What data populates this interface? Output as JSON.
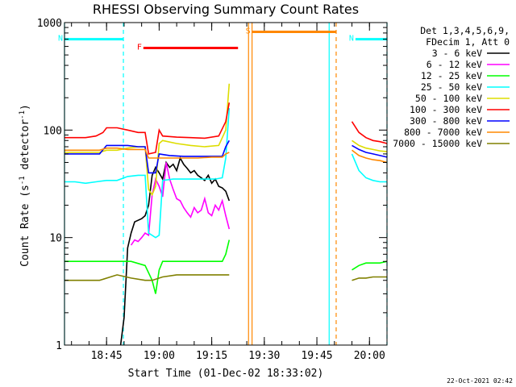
{
  "chart_data": {
    "type": "line",
    "title": "RHESSI Observing Summary Count Rates",
    "xlabel": "Start Time (01-Dec-02 18:33:02)",
    "ylabel_main": "Count Rate (s",
    "ylabel_sup1": "-1",
    "ylabel_mid": " detector",
    "ylabel_sup2": "-1",
    "ylabel_end": ")",
    "yscale": "log",
    "ylim": [
      1,
      1000
    ],
    "xlim_minutes": [
      0,
      92
    ],
    "x_ticks": [
      {
        "label": "18:45",
        "minutes": 12
      },
      {
        "label": "19:00",
        "minutes": 27
      },
      {
        "label": "19:15",
        "minutes": 42
      },
      {
        "label": "19:30",
        "minutes": 57
      },
      {
        "label": "19:45",
        "minutes": 72
      },
      {
        "label": "20:00",
        "minutes": 87
      }
    ],
    "y_ticks": [
      {
        "label": "1",
        "value": 1
      },
      {
        "label": "10",
        "value": 10
      },
      {
        "label": "100",
        "value": 100
      },
      {
        "label": "1000",
        "value": 1000
      }
    ],
    "legend_header": [
      "Det 1,3,4,5,6,9,",
      "FDecim 1, Att 0"
    ],
    "series": [
      {
        "name": "3 - 6 keV",
        "color": "#000000",
        "points": [
          [
            16,
            1
          ],
          [
            17,
            1.8
          ],
          [
            18,
            8
          ],
          [
            19,
            11
          ],
          [
            20,
            14
          ],
          [
            22,
            15
          ],
          [
            23,
            16
          ],
          [
            24,
            20
          ],
          [
            25,
            38
          ],
          [
            26,
            45
          ],
          [
            27,
            40
          ],
          [
            28,
            35
          ],
          [
            29,
            50
          ],
          [
            30,
            45
          ],
          [
            31,
            48
          ],
          [
            32,
            42
          ],
          [
            33,
            55
          ],
          [
            34,
            48
          ],
          [
            35,
            44
          ],
          [
            36,
            40
          ],
          [
            37,
            42
          ],
          [
            38,
            38
          ],
          [
            39,
            36
          ],
          [
            40,
            34
          ],
          [
            41,
            38
          ],
          [
            42,
            32
          ],
          [
            43,
            35
          ],
          [
            44,
            30
          ],
          [
            45,
            29
          ],
          [
            46,
            27
          ],
          [
            47,
            22
          ]
        ]
      },
      {
        "name": "6 - 12 keV",
        "color": "#ff00ff",
        "points": [
          [
            19,
            8.5
          ],
          [
            20,
            9.5
          ],
          [
            21,
            9.2
          ],
          [
            22,
            10
          ],
          [
            23,
            11
          ],
          [
            24,
            10.5
          ],
          [
            25,
            25
          ],
          [
            26,
            35
          ],
          [
            27,
            30
          ],
          [
            28,
            24
          ],
          [
            29,
            50
          ],
          [
            30,
            35
          ],
          [
            31,
            28
          ],
          [
            32,
            23
          ],
          [
            33,
            22
          ],
          [
            34,
            19
          ],
          [
            35,
            17
          ],
          [
            36,
            15.5
          ],
          [
            37,
            19
          ],
          [
            38,
            17
          ],
          [
            39,
            18
          ],
          [
            40,
            23
          ],
          [
            41,
            17
          ],
          [
            42,
            16
          ],
          [
            43,
            20
          ],
          [
            44,
            18
          ],
          [
            45,
            22
          ],
          [
            46,
            16
          ],
          [
            47,
            12
          ]
        ]
      },
      {
        "name": "12 - 25 keV",
        "color": "#00ff00",
        "points": [
          [
            0,
            6
          ],
          [
            5,
            6
          ],
          [
            10,
            6
          ],
          [
            15,
            6
          ],
          [
            19,
            6
          ],
          [
            23,
            5.5
          ],
          [
            25,
            4
          ],
          [
            26,
            3
          ],
          [
            27,
            5
          ],
          [
            28,
            6
          ],
          [
            32,
            6
          ],
          [
            37,
            6
          ],
          [
            42,
            6
          ],
          [
            45,
            6
          ],
          [
            46,
            7
          ],
          [
            47,
            9.5
          ]
        ]
      },
      {
        "name": "25 - 50 keV",
        "color": "#00ffff",
        "points": [
          [
            0,
            33
          ],
          [
            3,
            33
          ],
          [
            6,
            32
          ],
          [
            9,
            33
          ],
          [
            12,
            34
          ],
          [
            15,
            34
          ],
          [
            18,
            37
          ],
          [
            21,
            38
          ],
          [
            23,
            38
          ],
          [
            24,
            11
          ],
          [
            26,
            10
          ],
          [
            27,
            10.5
          ],
          [
            28,
            34
          ],
          [
            31,
            35
          ],
          [
            34,
            35
          ],
          [
            37,
            35
          ],
          [
            40,
            35
          ],
          [
            43,
            35
          ],
          [
            45,
            36
          ],
          [
            46,
            55
          ],
          [
            47,
            160
          ]
        ]
      },
      {
        "name": "50 - 100 keV",
        "color": "#dddd00",
        "points": [
          [
            0,
            62
          ],
          [
            5,
            62
          ],
          [
            10,
            62
          ],
          [
            12,
            65
          ],
          [
            15,
            65
          ],
          [
            18,
            68
          ],
          [
            21,
            70
          ],
          [
            23,
            70
          ],
          [
            24,
            28
          ],
          [
            25,
            25
          ],
          [
            26,
            30
          ],
          [
            27,
            75
          ],
          [
            28,
            80
          ],
          [
            32,
            75
          ],
          [
            36,
            72
          ],
          [
            40,
            70
          ],
          [
            44,
            72
          ],
          [
            46,
            100
          ],
          [
            47,
            270
          ]
        ]
      },
      {
        "name": "100 - 300 keV",
        "color": "#ff0000",
        "points": [
          [
            0,
            85
          ],
          [
            3,
            85
          ],
          [
            6,
            85
          ],
          [
            9,
            88
          ],
          [
            11,
            95
          ],
          [
            12,
            105
          ],
          [
            15,
            105
          ],
          [
            18,
            100
          ],
          [
            21,
            95
          ],
          [
            23,
            95
          ],
          [
            24,
            60
          ],
          [
            26,
            62
          ],
          [
            27,
            100
          ],
          [
            28,
            88
          ],
          [
            32,
            86
          ],
          [
            36,
            85
          ],
          [
            40,
            84
          ],
          [
            44,
            88
          ],
          [
            46,
            120
          ],
          [
            47,
            180
          ]
        ]
      },
      {
        "name": "300 - 800 keV",
        "color": "#0000ff",
        "points": [
          [
            0,
            60
          ],
          [
            5,
            60
          ],
          [
            10,
            60
          ],
          [
            12,
            72
          ],
          [
            15,
            72
          ],
          [
            18,
            72
          ],
          [
            21,
            70
          ],
          [
            23,
            70
          ],
          [
            24,
            40
          ],
          [
            26,
            40
          ],
          [
            27,
            60
          ],
          [
            30,
            58
          ],
          [
            34,
            57
          ],
          [
            38,
            57
          ],
          [
            42,
            57
          ],
          [
            45,
            57
          ],
          [
            46,
            70
          ],
          [
            47,
            80
          ]
        ]
      },
      {
        "name": "800 - 7000 keV",
        "color": "#ff8800",
        "points": [
          [
            0,
            65
          ],
          [
            5,
            65
          ],
          [
            10,
            65
          ],
          [
            12,
            68
          ],
          [
            15,
            68
          ],
          [
            18,
            66
          ],
          [
            21,
            66
          ],
          [
            23,
            66
          ],
          [
            24,
            55
          ],
          [
            27,
            55
          ],
          [
            30,
            55
          ],
          [
            34,
            55
          ],
          [
            38,
            55
          ],
          [
            42,
            56
          ],
          [
            45,
            56
          ],
          [
            46,
            60
          ],
          [
            47,
            62
          ]
        ]
      },
      {
        "name": "7000 - 15000 keV",
        "color": "#808000",
        "points": [
          [
            0,
            4
          ],
          [
            5,
            4
          ],
          [
            10,
            4
          ],
          [
            15,
            4.5
          ],
          [
            19,
            4.2
          ],
          [
            23,
            4
          ],
          [
            25,
            4
          ],
          [
            28,
            4.3
          ],
          [
            32,
            4.5
          ],
          [
            37,
            4.5
          ],
          [
            42,
            4.5
          ],
          [
            46,
            4.5
          ],
          [
            47,
            4.5
          ]
        ]
      }
    ],
    "series_late": [
      {
        "name": "100 - 300 keV",
        "color": "#ff0000",
        "points": [
          [
            82,
            120
          ],
          [
            84,
            95
          ],
          [
            86,
            85
          ],
          [
            88,
            80
          ],
          [
            90,
            78
          ],
          [
            92,
            75
          ]
        ]
      },
      {
        "name": "300 - 800 keV",
        "color": "#0000ff",
        "points": [
          [
            82,
            72
          ],
          [
            84,
            66
          ],
          [
            86,
            62
          ],
          [
            88,
            60
          ],
          [
            90,
            58
          ],
          [
            92,
            56
          ]
        ]
      },
      {
        "name": "50 - 100 keV",
        "color": "#dddd00",
        "points": [
          [
            82,
            80
          ],
          [
            84,
            72
          ],
          [
            86,
            68
          ],
          [
            88,
            66
          ],
          [
            90,
            64
          ],
          [
            92,
            63
          ]
        ]
      },
      {
        "name": "800 - 7000 keV",
        "color": "#ff8800",
        "points": [
          [
            82,
            65
          ],
          [
            84,
            58
          ],
          [
            86,
            55
          ],
          [
            88,
            53
          ],
          [
            90,
            52
          ],
          [
            92,
            50
          ]
        ]
      },
      {
        "name": "25 - 50 keV",
        "color": "#00ffff",
        "points": [
          [
            82,
            60
          ],
          [
            84,
            42
          ],
          [
            86,
            36
          ],
          [
            88,
            34
          ],
          [
            90,
            33
          ],
          [
            92,
            33
          ]
        ]
      },
      {
        "name": "12 - 25 keV",
        "color": "#00ff00",
        "points": [
          [
            82,
            5
          ],
          [
            84,
            5.5
          ],
          [
            86,
            5.8
          ],
          [
            88,
            5.8
          ],
          [
            90,
            5.8
          ],
          [
            92,
            6
          ]
        ]
      },
      {
        "name": "7000 - 15000 keV",
        "color": "#808000",
        "points": [
          [
            82,
            4
          ],
          [
            84,
            4.2
          ],
          [
            86,
            4.2
          ],
          [
            88,
            4.3
          ],
          [
            90,
            4.3
          ],
          [
            92,
            4.3
          ]
        ]
      }
    ],
    "flag_bars": [
      {
        "label": "N",
        "color": "#00ffff",
        "start": 0,
        "end": 16.8,
        "value": 700
      },
      {
        "label": "N",
        "color": "#00ffff",
        "start": 83,
        "end": 92,
        "value": 700
      },
      {
        "label": "F",
        "color": "#ff0000",
        "start": 22.5,
        "end": 49.5,
        "value": 580
      },
      {
        "label": "S",
        "color": "#ff8800",
        "start": 53.5,
        "end": 77.5,
        "value": 820
      }
    ],
    "vertical_markers": [
      {
        "minutes": 16.8,
        "color": "#00ffff",
        "style": "dashed"
      },
      {
        "minutes": 52.5,
        "color": "#ff8800",
        "style": "solid"
      },
      {
        "minutes": 53.5,
        "color": "#ff8800",
        "style": "solid"
      },
      {
        "minutes": 75.5,
        "color": "#00ffff",
        "style": "solid"
      },
      {
        "minutes": 77.5,
        "color": "#ff8800",
        "style": "dashed"
      },
      {
        "minutes": 92,
        "color": "#00ffff",
        "style": "dashed"
      },
      {
        "minutes": 0,
        "color": "#00ffff",
        "style": "solid"
      }
    ],
    "footer_date": "22-Oct-2021 02:42"
  }
}
